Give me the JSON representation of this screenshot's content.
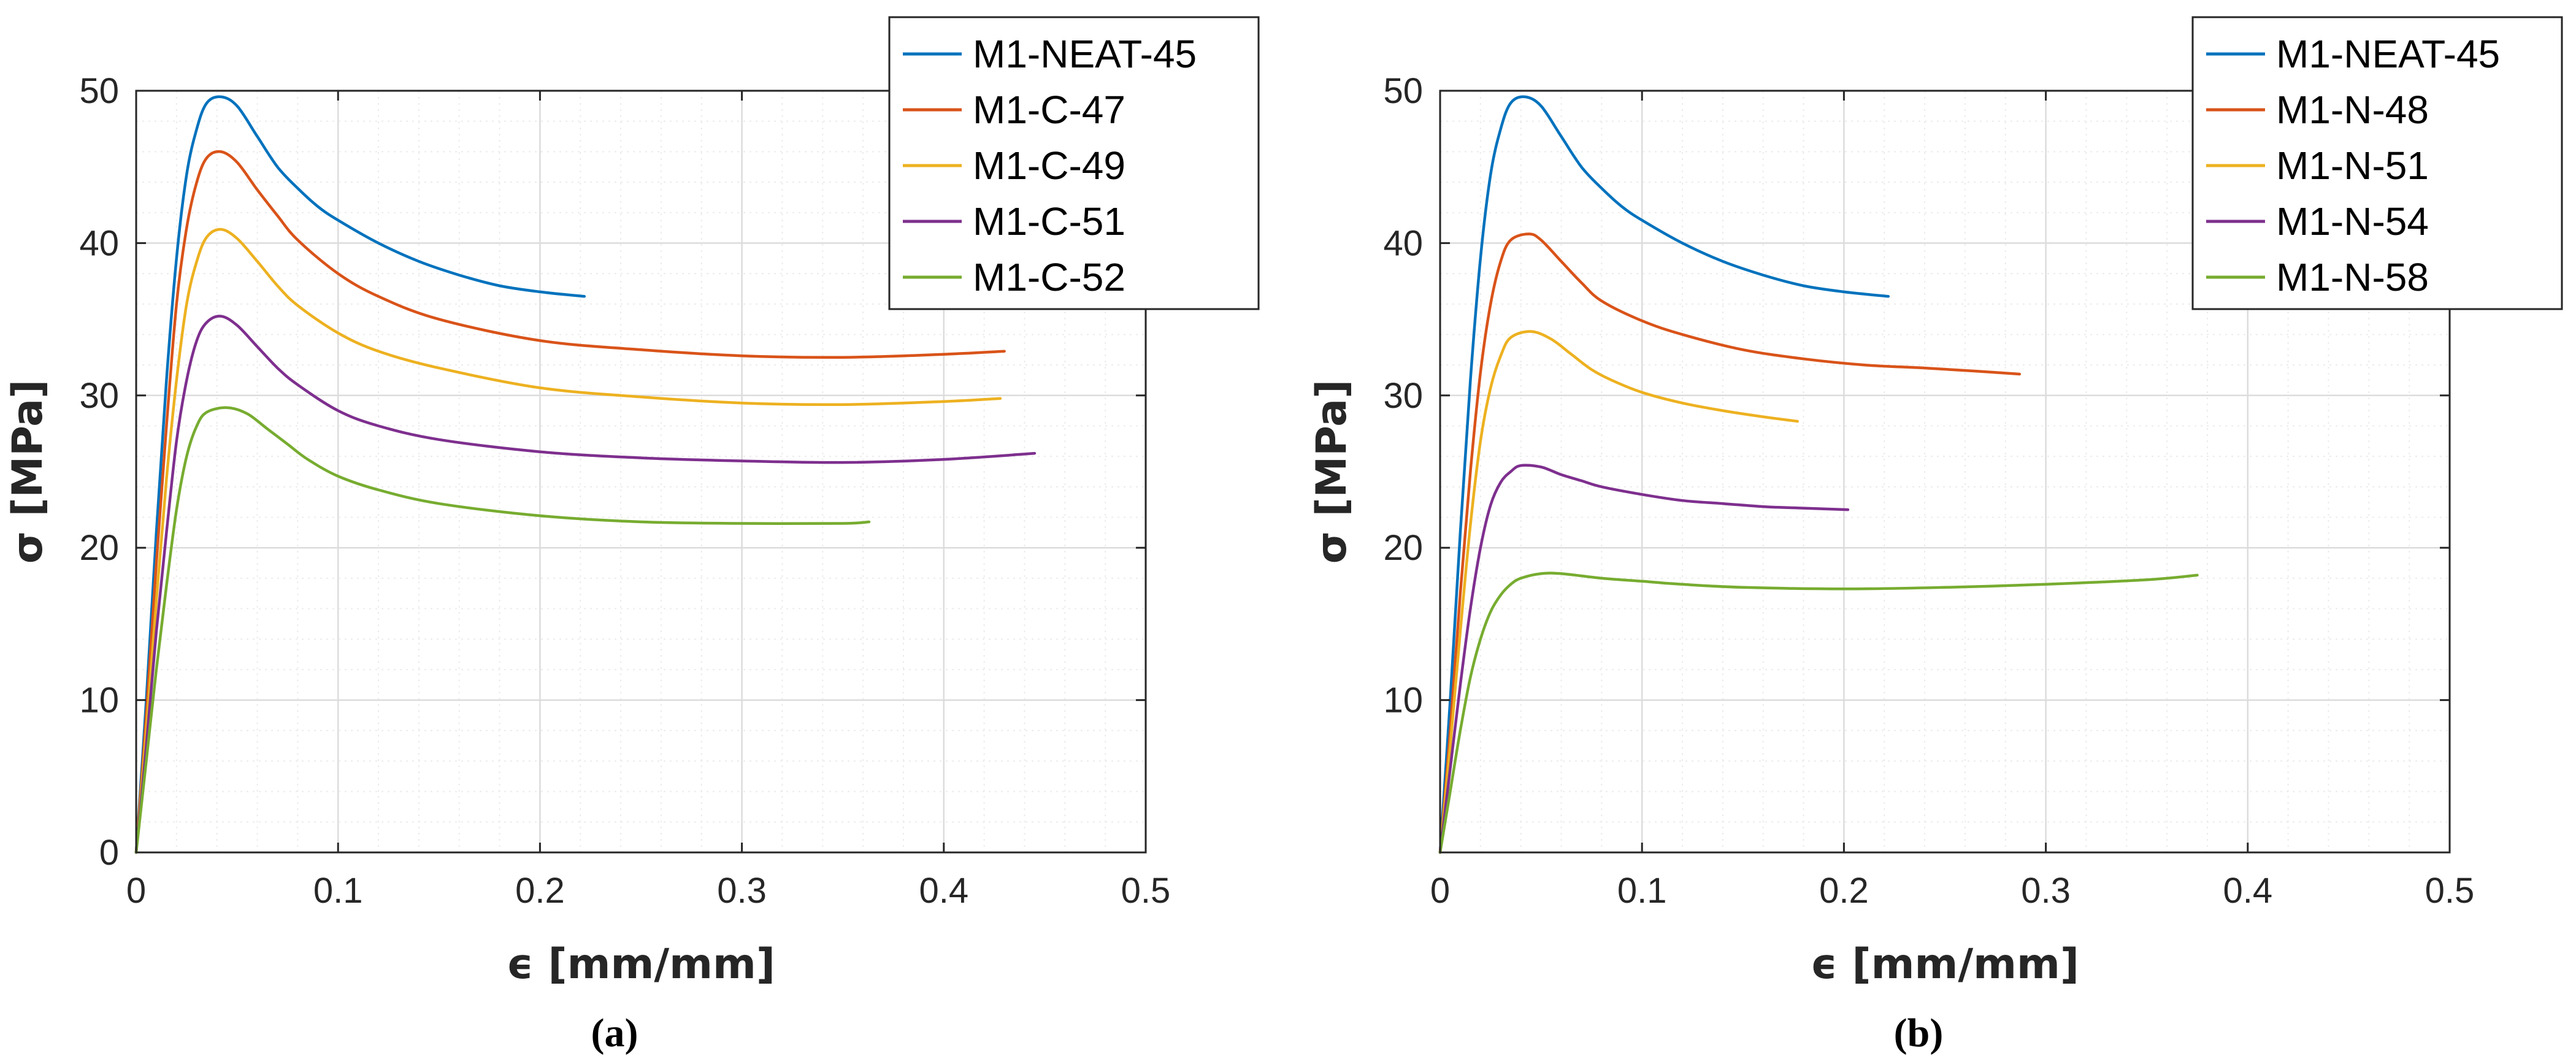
{
  "chart_data": [
    {
      "type": "line",
      "panel_label": "(a)",
      "xlabel": "ϵ [mm/mm]",
      "ylabel": "σ [MPa]",
      "xlim": [
        0,
        0.5
      ],
      "ylim": [
        0,
        50
      ],
      "xticks": [
        0,
        0.1,
        0.2,
        0.3,
        0.4,
        0.5
      ],
      "xtick_labels": [
        "0",
        "0.1",
        "0.2",
        "0.3",
        "0.4",
        "0.5"
      ],
      "yticks": [
        0,
        10,
        20,
        30,
        40,
        50
      ],
      "ytick_labels": [
        "0",
        "10",
        "20",
        "30",
        "40",
        "50"
      ],
      "grid": true,
      "minor_grid": true,
      "legend_position": "top-right",
      "series": [
        {
          "name": "M1-NEAT-45",
          "color": "#0072BD",
          "x": [
            0,
            0.005,
            0.01,
            0.015,
            0.02,
            0.025,
            0.03,
            0.035,
            0.042,
            0.05,
            0.06,
            0.07,
            0.08,
            0.09,
            0.1,
            0.12,
            0.14,
            0.16,
            0.18,
            0.2,
            0.222
          ],
          "y": [
            0,
            10,
            21,
            31,
            39,
            44.5,
            47.5,
            49.2,
            49.6,
            49,
            47,
            45,
            43.6,
            42.4,
            41.5,
            40,
            38.8,
            37.9,
            37.2,
            36.8,
            36.5
          ]
        },
        {
          "name": "M1-C-47",
          "color": "#D95319",
          "x": [
            0,
            0.005,
            0.01,
            0.015,
            0.02,
            0.025,
            0.03,
            0.035,
            0.042,
            0.05,
            0.06,
            0.07,
            0.08,
            0.1,
            0.12,
            0.15,
            0.2,
            0.25,
            0.3,
            0.35,
            0.4,
            0.43
          ],
          "y": [
            0,
            9,
            19,
            28,
            36,
            41,
            44,
            45.6,
            46,
            45.3,
            43.5,
            41.8,
            40.2,
            38,
            36.5,
            35,
            33.6,
            33,
            32.6,
            32.5,
            32.7,
            32.9
          ]
        },
        {
          "name": "M1-C-49",
          "color": "#EDB120",
          "x": [
            0,
            0.005,
            0.01,
            0.015,
            0.02,
            0.025,
            0.03,
            0.035,
            0.042,
            0.05,
            0.06,
            0.07,
            0.08,
            0.1,
            0.12,
            0.15,
            0.2,
            0.25,
            0.3,
            0.35,
            0.4,
            0.428
          ],
          "y": [
            0,
            8,
            16.5,
            24.5,
            31,
            36,
            38.8,
            40.4,
            40.9,
            40.3,
            38.8,
            37.2,
            35.9,
            34.1,
            32.9,
            31.8,
            30.5,
            29.9,
            29.5,
            29.4,
            29.6,
            29.8
          ]
        },
        {
          "name": "M1-C-51",
          "color": "#7E2F8E",
          "x": [
            0,
            0.005,
            0.01,
            0.015,
            0.02,
            0.025,
            0.03,
            0.035,
            0.042,
            0.05,
            0.06,
            0.07,
            0.08,
            0.1,
            0.12,
            0.15,
            0.2,
            0.25,
            0.3,
            0.35,
            0.4,
            0.445
          ],
          "y": [
            0,
            7,
            14.5,
            21,
            27,
            31,
            33.6,
            34.8,
            35.2,
            34.6,
            33.2,
            31.8,
            30.7,
            29,
            28,
            27.1,
            26.3,
            25.9,
            25.7,
            25.6,
            25.8,
            26.2
          ]
        },
        {
          "name": "M1-C-52",
          "color": "#77AC30",
          "x": [
            0,
            0.005,
            0.01,
            0.015,
            0.02,
            0.025,
            0.03,
            0.035,
            0.045,
            0.055,
            0.065,
            0.075,
            0.085,
            0.1,
            0.12,
            0.15,
            0.2,
            0.25,
            0.3,
            0.35,
            0.363
          ],
          "y": [
            0,
            6,
            12,
            17.5,
            22.5,
            26,
            28,
            28.9,
            29.2,
            28.8,
            27.8,
            26.8,
            25.8,
            24.7,
            23.8,
            22.9,
            22.1,
            21.7,
            21.6,
            21.6,
            21.7
          ]
        }
      ],
      "legend": [
        "M1-NEAT-45",
        "M1-C-47",
        "M1-C-49",
        "M1-C-51",
        "M1-C-52"
      ]
    },
    {
      "type": "line",
      "panel_label": "(b)",
      "xlabel": "ϵ [mm/mm]",
      "ylabel": "σ [MPa]",
      "xlim": [
        0,
        0.5
      ],
      "ylim": [
        0,
        50
      ],
      "xticks": [
        0,
        0.1,
        0.2,
        0.3,
        0.4,
        0.5
      ],
      "xtick_labels": [
        "0",
        "0.1",
        "0.2",
        "0.3",
        "0.4",
        "0.5"
      ],
      "yticks": [
        10,
        20,
        30,
        40,
        50
      ],
      "ytick_labels": [
        "10",
        "20",
        "30",
        "40",
        "50"
      ],
      "grid": true,
      "minor_grid": true,
      "legend_position": "top-right",
      "series": [
        {
          "name": "M1-NEAT-45",
          "color": "#0072BD",
          "x": [
            0,
            0.005,
            0.01,
            0.015,
            0.02,
            0.025,
            0.03,
            0.035,
            0.042,
            0.05,
            0.06,
            0.07,
            0.08,
            0.09,
            0.1,
            0.12,
            0.14,
            0.16,
            0.18,
            0.2,
            0.222
          ],
          "y": [
            0,
            10,
            21,
            31,
            39,
            44.5,
            47.5,
            49.2,
            49.6,
            49,
            47,
            45,
            43.6,
            42.4,
            41.5,
            40,
            38.8,
            37.9,
            37.2,
            36.8,
            36.5
          ]
        },
        {
          "name": "M1-N-48",
          "color": "#D95319",
          "x": [
            0,
            0.005,
            0.01,
            0.015,
            0.02,
            0.025,
            0.03,
            0.035,
            0.044,
            0.05,
            0.06,
            0.07,
            0.08,
            0.1,
            0.12,
            0.15,
            0.18,
            0.21,
            0.24,
            0.265,
            0.287
          ],
          "y": [
            0,
            8,
            17,
            25,
            31.5,
            36,
            38.8,
            40.2,
            40.6,
            40.2,
            38.8,
            37.4,
            36.2,
            34.9,
            34,
            33,
            32.4,
            32,
            31.8,
            31.6,
            31.4
          ]
        },
        {
          "name": "M1-N-51",
          "color": "#EDB120",
          "x": [
            0,
            0.005,
            0.01,
            0.015,
            0.02,
            0.025,
            0.03,
            0.035,
            0.045,
            0.055,
            0.065,
            0.075,
            0.085,
            0.1,
            0.12,
            0.14,
            0.16,
            0.177
          ],
          "y": [
            0,
            7,
            14.5,
            21.5,
            27,
            30.5,
            32.6,
            33.8,
            34.2,
            33.7,
            32.7,
            31.7,
            31,
            30.2,
            29.5,
            29,
            28.6,
            28.3
          ]
        },
        {
          "name": "M1-N-54",
          "color": "#7E2F8E",
          "x": [
            0,
            0.005,
            0.01,
            0.015,
            0.02,
            0.025,
            0.03,
            0.035,
            0.04,
            0.05,
            0.06,
            0.07,
            0.08,
            0.1,
            0.12,
            0.14,
            0.16,
            0.18,
            0.202
          ],
          "y": [
            0,
            5.5,
            11,
            16,
            20,
            22.8,
            24.3,
            25,
            25.4,
            25.3,
            24.8,
            24.4,
            24,
            23.5,
            23.1,
            22.9,
            22.7,
            22.6,
            22.5
          ]
        },
        {
          "name": "M1-N-58",
          "color": "#77AC30",
          "x": [
            0,
            0.005,
            0.01,
            0.015,
            0.02,
            0.025,
            0.03,
            0.035,
            0.04,
            0.05,
            0.06,
            0.08,
            0.1,
            0.12,
            0.15,
            0.2,
            0.25,
            0.3,
            0.35,
            0.375
          ],
          "y": [
            0,
            4,
            8,
            11.5,
            14,
            15.8,
            16.9,
            17.6,
            18,
            18.3,
            18.3,
            18,
            17.8,
            17.6,
            17.4,
            17.3,
            17.4,
            17.6,
            17.9,
            18.2
          ]
        }
      ],
      "legend": [
        "M1-NEAT-45",
        "M1-N-48",
        "M1-N-51",
        "M1-N-54",
        "M1-N-58"
      ]
    }
  ]
}
